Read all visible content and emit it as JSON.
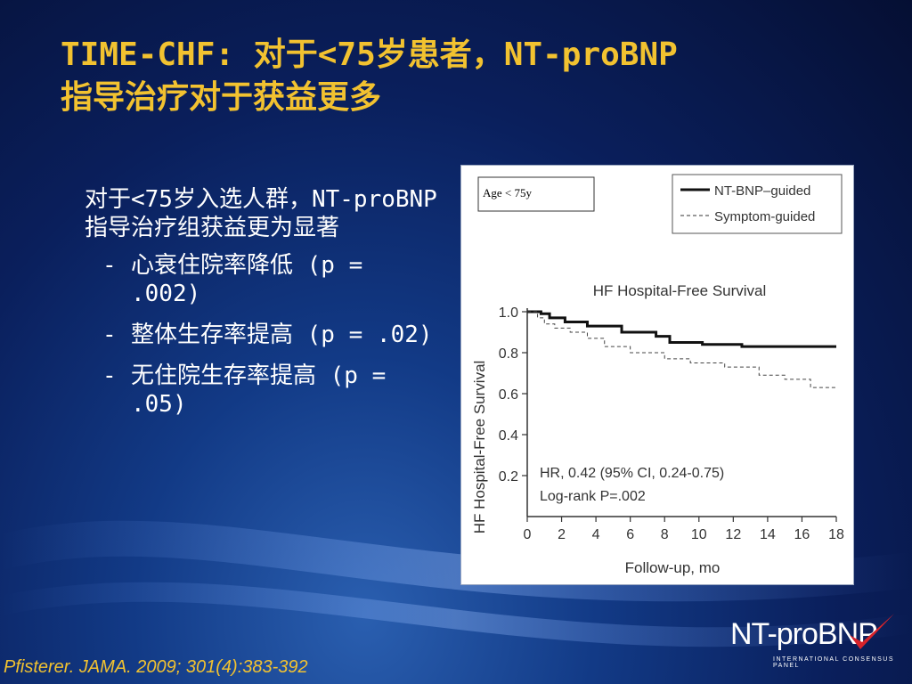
{
  "slide": {
    "title_line1": "TIME-CHF: 对于<75岁患者，NT-proBNP",
    "title_line2": "指导治疗对于获益更多",
    "lead": "对于<75岁入选人群，NT-proBNP指导治疗组获益更为显著",
    "bullets": [
      {
        "dash": "-",
        "text": "心衰住院率降低 (p = .002)"
      },
      {
        "dash": "-",
        "text": "整体生存率提高 (p = .02)"
      },
      {
        "dash": "-",
        "text": "无住院生存率提高 (p = .05)"
      }
    ],
    "citation": "Pfisterer. JAMA. 2009; 301(4):383-392",
    "logo": {
      "text": "NT-proBNP",
      "subtext": "INTERNATIONAL CONSENSUS PANEL",
      "check_color": "#d8232a"
    },
    "colors": {
      "title": "#f2c230",
      "body_text": "#ffffff",
      "background": "#0a1f5c"
    }
  },
  "chart_data": {
    "type": "line",
    "title": "HF Hospital-Free Survival",
    "subgroup_label": "Age < 75y",
    "xlabel": "Follow-up, mo",
    "ylabel": "HF Hospital-Free Survival",
    "xlim": [
      0,
      18
    ],
    "ylim": [
      0,
      1.0
    ],
    "xticks": [
      0,
      2,
      4,
      6,
      8,
      10,
      12,
      14,
      16,
      18
    ],
    "yticks": [
      0.2,
      0.4,
      0.6,
      0.8,
      1.0
    ],
    "ytick_labels": [
      "0.2",
      "0.4",
      "0.6",
      "0.8",
      "1.0"
    ],
    "legend_position": "top-right",
    "annotation_line1": "HR, 0.42 (95% CI, 0.24-0.75)",
    "annotation_line2": "Log-rank P=.002",
    "series": [
      {
        "name": "NT-BNP–guided",
        "style": "solid",
        "points": [
          [
            0,
            1.0
          ],
          [
            0.8,
            0.99
          ],
          [
            1.3,
            0.97
          ],
          [
            2.2,
            0.95
          ],
          [
            3.5,
            0.93
          ],
          [
            5.5,
            0.9
          ],
          [
            7.5,
            0.88
          ],
          [
            8.3,
            0.85
          ],
          [
            10.2,
            0.84
          ],
          [
            12.5,
            0.83
          ],
          [
            18,
            0.83
          ]
        ]
      },
      {
        "name": "Symptom-guided",
        "style": "dashed",
        "points": [
          [
            0,
            1.0
          ],
          [
            0.6,
            0.97
          ],
          [
            1.0,
            0.94
          ],
          [
            1.6,
            0.92
          ],
          [
            2.5,
            0.9
          ],
          [
            3.5,
            0.87
          ],
          [
            4.5,
            0.83
          ],
          [
            6.0,
            0.8
          ],
          [
            8.0,
            0.77
          ],
          [
            9.5,
            0.75
          ],
          [
            11.5,
            0.73
          ],
          [
            13.5,
            0.69
          ],
          [
            15.0,
            0.67
          ],
          [
            16.5,
            0.63
          ],
          [
            18,
            0.63
          ]
        ]
      }
    ]
  }
}
